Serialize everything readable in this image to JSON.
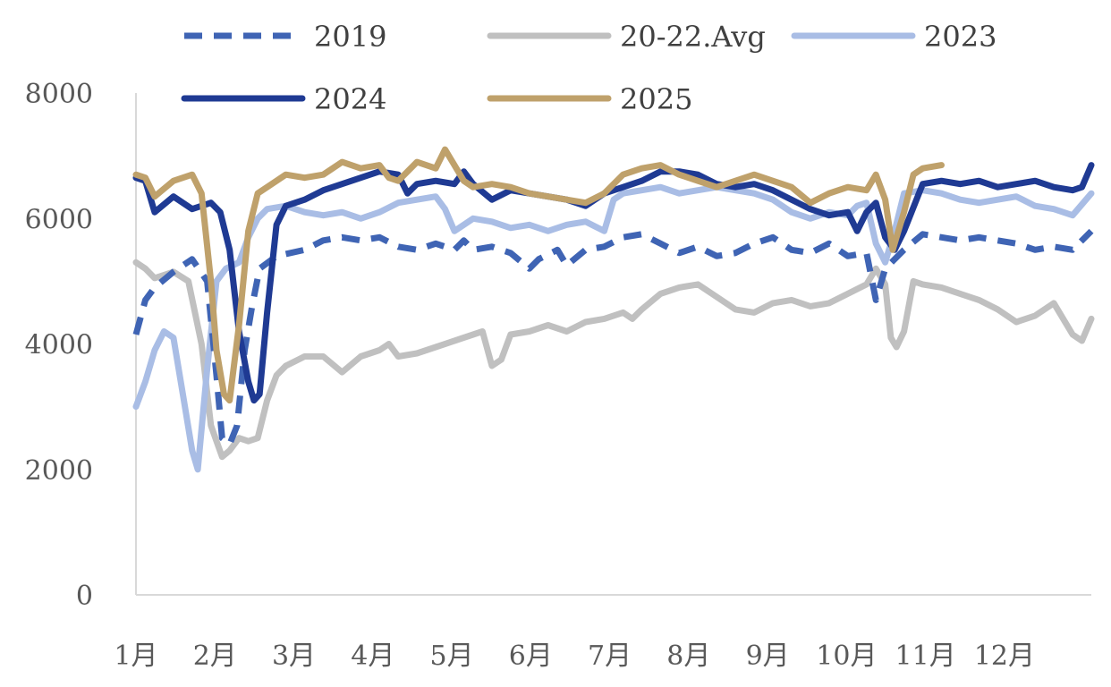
{
  "chart_data": {
    "type": "line",
    "title": "",
    "xlabel": "",
    "ylabel": "",
    "ylim": [
      0,
      8000
    ],
    "yticks": [
      "0",
      "2000",
      "4000",
      "6000",
      "8000"
    ],
    "x_unit": "week",
    "x_range": [
      1,
      52
    ],
    "categories": [
      "1月",
      "2月",
      "3月",
      "4月",
      "5月",
      "6月",
      "7月",
      "8月",
      "9月",
      "10月",
      "11月",
      "12月"
    ],
    "legend_position": "top",
    "grid": false,
    "series": [
      {
        "name": "2019",
        "color": "#3F64B4",
        "style": "dashed",
        "points": [
          [
            1,
            4150
          ],
          [
            1.5,
            4700
          ],
          [
            2,
            4900
          ],
          [
            3,
            5150
          ],
          [
            4,
            5350
          ],
          [
            4.8,
            5000
          ],
          [
            5.3,
            3500
          ],
          [
            5.6,
            2500
          ],
          [
            6,
            2400
          ],
          [
            6.4,
            2700
          ],
          [
            6.8,
            3900
          ],
          [
            7.2,
            4600
          ],
          [
            7.6,
            5200
          ],
          [
            8.5,
            5400
          ],
          [
            10,
            5500
          ],
          [
            11,
            5650
          ],
          [
            12,
            5700
          ],
          [
            13,
            5650
          ],
          [
            14,
            5700
          ],
          [
            15,
            5550
          ],
          [
            16,
            5500
          ],
          [
            17,
            5600
          ],
          [
            18,
            5500
          ],
          [
            18.5,
            5650
          ],
          [
            19,
            5500
          ],
          [
            20,
            5550
          ],
          [
            21,
            5450
          ],
          [
            22,
            5200
          ],
          [
            22.5,
            5350
          ],
          [
            23.5,
            5500
          ],
          [
            24,
            5250
          ],
          [
            25,
            5500
          ],
          [
            26,
            5550
          ],
          [
            27,
            5700
          ],
          [
            28,
            5750
          ],
          [
            29,
            5600
          ],
          [
            30,
            5450
          ],
          [
            31,
            5550
          ],
          [
            32,
            5400
          ],
          [
            33,
            5450
          ],
          [
            34,
            5600
          ],
          [
            35,
            5700
          ],
          [
            36,
            5500
          ],
          [
            37,
            5450
          ],
          [
            38,
            5600
          ],
          [
            39,
            5400
          ],
          [
            40,
            5450
          ],
          [
            40.5,
            4700
          ],
          [
            41,
            5200
          ],
          [
            42,
            5500
          ],
          [
            43,
            5750
          ],
          [
            44,
            5700
          ],
          [
            45,
            5650
          ],
          [
            46,
            5700
          ],
          [
            47,
            5650
          ],
          [
            48,
            5600
          ],
          [
            49,
            5500
          ],
          [
            50,
            5550
          ],
          [
            51,
            5500
          ],
          [
            52,
            5800
          ]
        ]
      },
      {
        "name": "20-22.Avg",
        "color": "#C0C0C0",
        "style": "solid",
        "points": [
          [
            1,
            5300
          ],
          [
            1.5,
            5200
          ],
          [
            2,
            5050
          ],
          [
            3,
            5150
          ],
          [
            3.8,
            5000
          ],
          [
            4.5,
            4000
          ],
          [
            5,
            2700
          ],
          [
            5.6,
            2200
          ],
          [
            6,
            2300
          ],
          [
            6.5,
            2500
          ],
          [
            7,
            2450
          ],
          [
            7.5,
            2500
          ],
          [
            8,
            3100
          ],
          [
            8.5,
            3500
          ],
          [
            9,
            3650
          ],
          [
            10,
            3800
          ],
          [
            11,
            3800
          ],
          [
            12,
            3550
          ],
          [
            13,
            3800
          ],
          [
            14,
            3900
          ],
          [
            14.5,
            4000
          ],
          [
            15,
            3800
          ],
          [
            16,
            3850
          ],
          [
            17,
            3950
          ],
          [
            18,
            4050
          ],
          [
            19,
            4150
          ],
          [
            19.5,
            4200
          ],
          [
            20,
            3650
          ],
          [
            20.5,
            3750
          ],
          [
            21,
            4150
          ],
          [
            22,
            4200
          ],
          [
            23,
            4300
          ],
          [
            24,
            4200
          ],
          [
            25,
            4350
          ],
          [
            26,
            4400
          ],
          [
            27,
            4500
          ],
          [
            27.5,
            4400
          ],
          [
            28,
            4550
          ],
          [
            29,
            4800
          ],
          [
            30,
            4900
          ],
          [
            31,
            4950
          ],
          [
            32,
            4750
          ],
          [
            33,
            4550
          ],
          [
            34,
            4500
          ],
          [
            35,
            4650
          ],
          [
            36,
            4700
          ],
          [
            37,
            4600
          ],
          [
            38,
            4650
          ],
          [
            39,
            4800
          ],
          [
            40,
            4950
          ],
          [
            40.5,
            5200
          ],
          [
            41,
            4950
          ],
          [
            41.3,
            4100
          ],
          [
            41.6,
            3950
          ],
          [
            42,
            4200
          ],
          [
            42.5,
            5000
          ],
          [
            43,
            4950
          ],
          [
            44,
            4900
          ],
          [
            45,
            4800
          ],
          [
            46,
            4700
          ],
          [
            47,
            4550
          ],
          [
            48,
            4350
          ],
          [
            49,
            4450
          ],
          [
            50,
            4650
          ],
          [
            51,
            4150
          ],
          [
            51.5,
            4050
          ],
          [
            52,
            4400
          ]
        ]
      },
      {
        "name": "2023",
        "color": "#A9BDE5",
        "style": "solid",
        "points": [
          [
            1,
            3000
          ],
          [
            1.5,
            3400
          ],
          [
            2,
            3900
          ],
          [
            2.5,
            4200
          ],
          [
            3,
            4100
          ],
          [
            3.5,
            3200
          ],
          [
            4,
            2300
          ],
          [
            4.3,
            2000
          ],
          [
            4.8,
            3600
          ],
          [
            5.3,
            5000
          ],
          [
            5.8,
            5200
          ],
          [
            6.5,
            5300
          ],
          [
            7,
            5700
          ],
          [
            7.5,
            6000
          ],
          [
            8,
            6150
          ],
          [
            9,
            6200
          ],
          [
            10,
            6100
          ],
          [
            11,
            6050
          ],
          [
            12,
            6100
          ],
          [
            13,
            6000
          ],
          [
            14,
            6100
          ],
          [
            15,
            6250
          ],
          [
            16,
            6300
          ],
          [
            17,
            6350
          ],
          [
            17.5,
            6150
          ],
          [
            18,
            5800
          ],
          [
            18.5,
            5900
          ],
          [
            19,
            6000
          ],
          [
            20,
            5950
          ],
          [
            21,
            5850
          ],
          [
            22,
            5900
          ],
          [
            23,
            5800
          ],
          [
            24,
            5900
          ],
          [
            25,
            5950
          ],
          [
            26,
            5800
          ],
          [
            26.5,
            6300
          ],
          [
            27,
            6400
          ],
          [
            28,
            6450
          ],
          [
            29,
            6500
          ],
          [
            30,
            6400
          ],
          [
            31,
            6450
          ],
          [
            32,
            6500
          ],
          [
            33,
            6450
          ],
          [
            34,
            6400
          ],
          [
            35,
            6300
          ],
          [
            36,
            6100
          ],
          [
            37,
            6000
          ],
          [
            38,
            6100
          ],
          [
            39,
            6050
          ],
          [
            39.5,
            6200
          ],
          [
            40,
            6250
          ],
          [
            40.5,
            5600
          ],
          [
            41,
            5300
          ],
          [
            41.5,
            5800
          ],
          [
            42,
            6400
          ],
          [
            43,
            6450
          ],
          [
            44,
            6400
          ],
          [
            45,
            6300
          ],
          [
            46,
            6250
          ],
          [
            47,
            6300
          ],
          [
            48,
            6350
          ],
          [
            49,
            6200
          ],
          [
            50,
            6150
          ],
          [
            51,
            6050
          ],
          [
            52,
            6400
          ]
        ]
      },
      {
        "name": "2024",
        "color": "#1F3A93",
        "style": "solid",
        "points": [
          [
            1,
            6650
          ],
          [
            1.5,
            6600
          ],
          [
            2,
            6100
          ],
          [
            3,
            6350
          ],
          [
            4,
            6150
          ],
          [
            5,
            6250
          ],
          [
            5.5,
            6100
          ],
          [
            6,
            5500
          ],
          [
            6.5,
            4200
          ],
          [
            7,
            3400
          ],
          [
            7.3,
            3100
          ],
          [
            7.6,
            3200
          ],
          [
            8,
            4500
          ],
          [
            8.5,
            5900
          ],
          [
            9,
            6200
          ],
          [
            10,
            6300
          ],
          [
            11,
            6450
          ],
          [
            12,
            6550
          ],
          [
            13,
            6650
          ],
          [
            14,
            6750
          ],
          [
            15,
            6700
          ],
          [
            15.5,
            6400
          ],
          [
            16,
            6550
          ],
          [
            17,
            6600
          ],
          [
            18,
            6550
          ],
          [
            18.5,
            6750
          ],
          [
            19,
            6550
          ],
          [
            20,
            6300
          ],
          [
            21,
            6450
          ],
          [
            22,
            6400
          ],
          [
            23,
            6350
          ],
          [
            24,
            6300
          ],
          [
            25,
            6200
          ],
          [
            26,
            6400
          ],
          [
            27,
            6500
          ],
          [
            28,
            6600
          ],
          [
            29,
            6750
          ],
          [
            30,
            6750
          ],
          [
            31,
            6700
          ],
          [
            32,
            6550
          ],
          [
            33,
            6500
          ],
          [
            34,
            6550
          ],
          [
            35,
            6450
          ],
          [
            36,
            6300
          ],
          [
            37,
            6150
          ],
          [
            38,
            6050
          ],
          [
            39,
            6100
          ],
          [
            39.5,
            5800
          ],
          [
            40,
            6100
          ],
          [
            40.5,
            6250
          ],
          [
            41,
            5700
          ],
          [
            41.5,
            5500
          ],
          [
            42,
            5800
          ],
          [
            43,
            6550
          ],
          [
            44,
            6600
          ],
          [
            45,
            6550
          ],
          [
            46,
            6600
          ],
          [
            47,
            6500
          ],
          [
            48,
            6550
          ],
          [
            49,
            6600
          ],
          [
            50,
            6500
          ],
          [
            51,
            6450
          ],
          [
            51.5,
            6500
          ],
          [
            52,
            6850
          ]
        ]
      },
      {
        "name": "2025",
        "color": "#BFA16B",
        "style": "solid",
        "points": [
          [
            1,
            6700
          ],
          [
            1.5,
            6650
          ],
          [
            2,
            6350
          ],
          [
            3,
            6600
          ],
          [
            4,
            6700
          ],
          [
            4.5,
            6400
          ],
          [
            5,
            5000
          ],
          [
            5.3,
            3900
          ],
          [
            5.7,
            3200
          ],
          [
            6,
            3100
          ],
          [
            6.5,
            4300
          ],
          [
            7,
            5800
          ],
          [
            7.5,
            6400
          ],
          [
            8.5,
            6600
          ],
          [
            9,
            6700
          ],
          [
            10,
            6650
          ],
          [
            11,
            6700
          ],
          [
            12,
            6900
          ],
          [
            13,
            6800
          ],
          [
            14,
            6850
          ],
          [
            14.5,
            6650
          ],
          [
            15,
            6600
          ],
          [
            16,
            6900
          ],
          [
            17,
            6800
          ],
          [
            17.5,
            7100
          ],
          [
            18,
            6850
          ],
          [
            18.5,
            6600
          ],
          [
            19,
            6500
          ],
          [
            20,
            6550
          ],
          [
            21,
            6500
          ],
          [
            22,
            6400
          ],
          [
            23,
            6350
          ],
          [
            24,
            6300
          ],
          [
            25,
            6250
          ],
          [
            26,
            6400
          ],
          [
            27,
            6700
          ],
          [
            28,
            6800
          ],
          [
            29,
            6850
          ],
          [
            30,
            6700
          ],
          [
            31,
            6600
          ],
          [
            32,
            6500
          ],
          [
            33,
            6600
          ],
          [
            34,
            6700
          ],
          [
            35,
            6600
          ],
          [
            36,
            6500
          ],
          [
            37,
            6250
          ],
          [
            38,
            6400
          ],
          [
            39,
            6500
          ],
          [
            40,
            6450
          ],
          [
            40.5,
            6700
          ],
          [
            41,
            6300
          ],
          [
            41.4,
            5500
          ],
          [
            42,
            6100
          ],
          [
            42.5,
            6700
          ],
          [
            43,
            6800
          ],
          [
            44,
            6850
          ]
        ]
      }
    ]
  }
}
